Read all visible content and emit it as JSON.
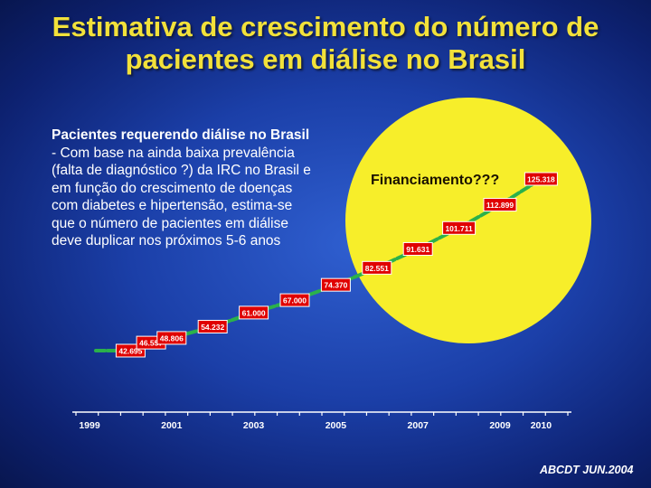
{
  "title": {
    "line1": "Estimativa de crescimento do número de",
    "line2": "pacientes em diálise no Brasil"
  },
  "text_box": {
    "heading": "Pacientes requerendo diálise no Brasil",
    "body": "- Com base na ainda baixa prevalência\n(falta de diagnóstico ?) da IRC no Brasil e\nem função do crescimento de doenças\ncom diabetes e hipertensão, estima-se\nque o número de pacientes em diálise\ndeve duplicar nos próximos 5-6 anos"
  },
  "annotation": "Financiamento???",
  "source": "ABCDT JUN.2004",
  "colors": {
    "background": "#1b3fa8",
    "title": "#f2e13a",
    "circle": "#f7ee2a",
    "line": "#2bb14b",
    "label_bg": "#e00000",
    "axis": "#ffffff"
  },
  "chart_data": {
    "type": "line",
    "xlim": [
      1999,
      2010
    ],
    "x_ticks": [
      "1999",
      "2001",
      "2003",
      "2005",
      "2007",
      "2009",
      "2010"
    ],
    "series": [
      {
        "points": [
          {
            "x": 2000.0,
            "y": 42695,
            "label": "42.695"
          },
          {
            "x": 2000.5,
            "y": 46557,
            "label": "46.557"
          },
          {
            "x": 2001.0,
            "y": 48806,
            "label": "48.806"
          },
          {
            "x": 2002.0,
            "y": 54232,
            "label": "54.232"
          },
          {
            "x": 2003.0,
            "y": 61000,
            "label": "61.000"
          },
          {
            "x": 2004.0,
            "y": 67000,
            "label": "67.000"
          },
          {
            "x": 2005.0,
            "y": 74370,
            "label": "74.370"
          },
          {
            "x": 2006.0,
            "y": 82551,
            "label": "82.551"
          },
          {
            "x": 2007.0,
            "y": 91631,
            "label": "91.631"
          },
          {
            "x": 2008.0,
            "y": 101711,
            "label": "101.711"
          },
          {
            "x": 2009.0,
            "y": 112899,
            "label": "112.899"
          },
          {
            "x": 2010.0,
            "y": 125318,
            "label": "125.318"
          }
        ]
      }
    ],
    "grid": false,
    "title": "",
    "xlabel": "",
    "ylabel": ""
  }
}
